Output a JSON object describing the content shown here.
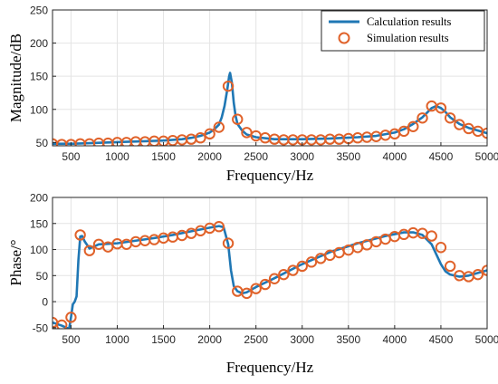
{
  "colors": {
    "calc": "#1f77b4",
    "sim": "#e0622a"
  },
  "legend": {
    "placement": "top-right",
    "entries": [
      {
        "label": "Calculation results",
        "marker": "line"
      },
      {
        "label": "Simulation results",
        "marker": "circle"
      }
    ]
  },
  "chart_data": [
    {
      "type": "line",
      "xlabel": "Frequency/Hz",
      "ylabel": "Magnitude/dB",
      "xlim": [
        300,
        5000
      ],
      "ylim": [
        45,
        250
      ],
      "grid": true,
      "xticks": [
        500,
        1000,
        1500,
        2000,
        2500,
        3000,
        3500,
        4000,
        4500,
        5000
      ],
      "yticks": [
        50,
        100,
        150,
        200,
        250
      ],
      "series": [
        {
          "name": "Calculation results",
          "style": "line",
          "x": [
            300,
            500,
            700,
            900,
            1100,
            1300,
            1500,
            1700,
            1800,
            1900,
            2000,
            2050,
            2100,
            2130,
            2160,
            2190,
            2210,
            2220,
            2240,
            2260,
            2280,
            2300,
            2350,
            2400,
            2500,
            2700,
            3000,
            3300,
            3600,
            3800,
            4000,
            4100,
            4200,
            4300,
            4350,
            4400,
            4450,
            4500,
            4550,
            4600,
            4700,
            4800,
            4900,
            5000
          ],
          "y": [
            48,
            48,
            49,
            50,
            51,
            52,
            53,
            55,
            57,
            60,
            65,
            70,
            77,
            88,
            105,
            130,
            150,
            155,
            140,
            110,
            90,
            78,
            68,
            62,
            58,
            55,
            55,
            56,
            58,
            60,
            65,
            70,
            78,
            88,
            95,
            102,
            105,
            102,
            96,
            88,
            78,
            72,
            68,
            64
          ]
        },
        {
          "name": "Simulation results",
          "style": "marker",
          "x": [
            300,
            400,
            500,
            600,
            700,
            800,
            900,
            1000,
            1100,
            1200,
            1300,
            1400,
            1500,
            1600,
            1700,
            1800,
            1900,
            2000,
            2100,
            2200,
            2300,
            2400,
            2500,
            2600,
            2700,
            2800,
            2900,
            3000,
            3100,
            3200,
            3300,
            3400,
            3500,
            3600,
            3700,
            3800,
            3900,
            4000,
            4100,
            4200,
            4300,
            4400,
            4500,
            4600,
            4700,
            4800,
            4900,
            5000
          ],
          "y": [
            48,
            47,
            47,
            48,
            48,
            49,
            49,
            50,
            50,
            51,
            51,
            52,
            52,
            53,
            54,
            55,
            57,
            63,
            73,
            135,
            85,
            65,
            60,
            57,
            55,
            54,
            54,
            54,
            54,
            54,
            55,
            55,
            56,
            57,
            58,
            59,
            61,
            63,
            67,
            74,
            87,
            105,
            102,
            87,
            77,
            71,
            67,
            64
          ]
        }
      ]
    },
    {
      "type": "line",
      "xlabel": "Frequency/Hz",
      "ylabel": "Phase/°",
      "xlim": [
        300,
        5000
      ],
      "ylim": [
        -52,
        200
      ],
      "grid": true,
      "xticks": [
        500,
        1000,
        1500,
        2000,
        2500,
        3000,
        3500,
        4000,
        4500,
        5000
      ],
      "yticks": [
        -50,
        0,
        50,
        100,
        150,
        200
      ],
      "series": [
        {
          "name": "Calculation results",
          "style": "line",
          "x": [
            300,
            350,
            400,
            450,
            480,
            500,
            520,
            540,
            560,
            580,
            600,
            620,
            650,
            700,
            800,
            1000,
            1200,
            1400,
            1600,
            1800,
            2000,
            2100,
            2150,
            2200,
            2230,
            2260,
            2300,
            2350,
            2400,
            2500,
            2700,
            3000,
            3300,
            3600,
            3900,
            4100,
            4200,
            4300,
            4400,
            4500,
            4550,
            4600,
            4700,
            4800,
            4900,
            5000
          ],
          "y": [
            -40,
            -43,
            -46,
            -50,
            -52,
            -30,
            -5,
            0,
            10,
            80,
            125,
            126,
            115,
            102,
            110,
            112,
            117,
            122,
            128,
            135,
            142,
            145,
            143,
            110,
            60,
            30,
            20,
            16,
            18,
            28,
            45,
            72,
            95,
            112,
            126,
            133,
            133,
            128,
            110,
            72,
            58,
            52,
            48,
            50,
            55,
            60
          ]
        },
        {
          "name": "Simulation results",
          "style": "marker",
          "x": [
            300,
            400,
            500,
            600,
            700,
            800,
            900,
            1000,
            1100,
            1200,
            1300,
            1400,
            1500,
            1600,
            1700,
            1800,
            1900,
            2000,
            2100,
            2200,
            2300,
            2400,
            2500,
            2600,
            2700,
            2800,
            2900,
            3000,
            3100,
            3200,
            3300,
            3400,
            3500,
            3600,
            3700,
            3800,
            3900,
            4000,
            4100,
            4200,
            4300,
            4400,
            4500,
            4600,
            4700,
            4800,
            4900,
            5000
          ],
          "y": [
            -40,
            -45,
            -30,
            128,
            98,
            110,
            105,
            111,
            110,
            115,
            117,
            119,
            122,
            124,
            127,
            131,
            136,
            141,
            144,
            112,
            20,
            16,
            25,
            33,
            44,
            52,
            60,
            68,
            76,
            83,
            89,
            94,
            99,
            104,
            109,
            115,
            120,
            125,
            129,
            132,
            131,
            126,
            104,
            68,
            50,
            48,
            52,
            60
          ]
        }
      ]
    }
  ]
}
